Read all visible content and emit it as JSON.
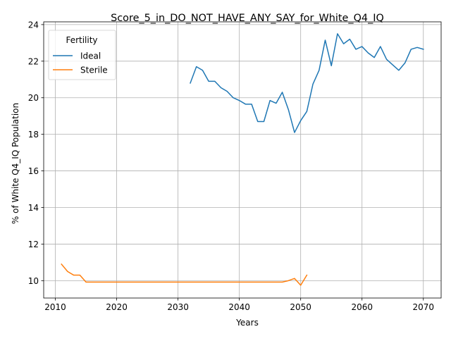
{
  "chart_data": {
    "type": "line",
    "title": "Score_5_in_DO_NOT_HAVE_ANY_SAY_for_White_Q4_IQ",
    "xlabel": "Years",
    "ylabel": "% of White Q4_IQ Population",
    "xlim": [
      2008.1,
      2072.9
    ],
    "ylim": [
      9.05,
      24.15
    ],
    "xticks": [
      2010,
      2020,
      2030,
      2040,
      2050,
      2060,
      2070
    ],
    "yticks": [
      10,
      12,
      14,
      16,
      18,
      20,
      22,
      24
    ],
    "grid": true,
    "legend": {
      "title": "Fertility",
      "placement": "upper left"
    },
    "series": [
      {
        "name": "Ideal",
        "color": "#1f77b4",
        "x": [
          2032,
          2033,
          2034,
          2035,
          2036,
          2037,
          2038,
          2039,
          2040,
          2041,
          2042,
          2043,
          2044,
          2045,
          2046,
          2047,
          2048,
          2049,
          2050,
          2051,
          2052,
          2053,
          2054,
          2055,
          2056,
          2057,
          2058,
          2059,
          2060,
          2061,
          2062,
          2063,
          2064,
          2065,
          2066,
          2067,
          2068,
          2069,
          2070
        ],
        "y": [
          20.8,
          21.7,
          21.5,
          20.9,
          20.9,
          20.55,
          20.35,
          20.0,
          19.85,
          19.65,
          19.65,
          18.7,
          18.7,
          19.85,
          19.7,
          20.3,
          19.35,
          18.1,
          18.75,
          19.25,
          20.75,
          21.5,
          23.15,
          21.75,
          23.5,
          22.95,
          23.2,
          22.65,
          22.8,
          22.45,
          22.2,
          22.8,
          22.1,
          21.8,
          21.5,
          21.9,
          22.65,
          22.75,
          22.65
        ]
      },
      {
        "name": "Sterile",
        "color": "#ff7f0e",
        "x": [
          2011,
          2012,
          2013,
          2014,
          2015,
          2016,
          2017,
          2018,
          2019,
          2020,
          2021,
          2022,
          2023,
          2024,
          2025,
          2026,
          2027,
          2028,
          2029,
          2030,
          2031,
          2032,
          2033,
          2034,
          2035,
          2036,
          2037,
          2038,
          2039,
          2040,
          2041,
          2042,
          2043,
          2044,
          2045,
          2046,
          2047,
          2048,
          2049,
          2050,
          2051
        ],
        "y": [
          10.9,
          10.5,
          10.3,
          10.3,
          9.92,
          9.92,
          9.92,
          9.92,
          9.92,
          9.92,
          9.92,
          9.92,
          9.92,
          9.92,
          9.92,
          9.92,
          9.92,
          9.92,
          9.92,
          9.92,
          9.92,
          9.92,
          9.92,
          9.92,
          9.92,
          9.92,
          9.92,
          9.92,
          9.92,
          9.92,
          9.92,
          9.92,
          9.92,
          9.92,
          9.92,
          9.92,
          9.92,
          10.0,
          10.12,
          9.75,
          10.3
        ]
      }
    ]
  }
}
